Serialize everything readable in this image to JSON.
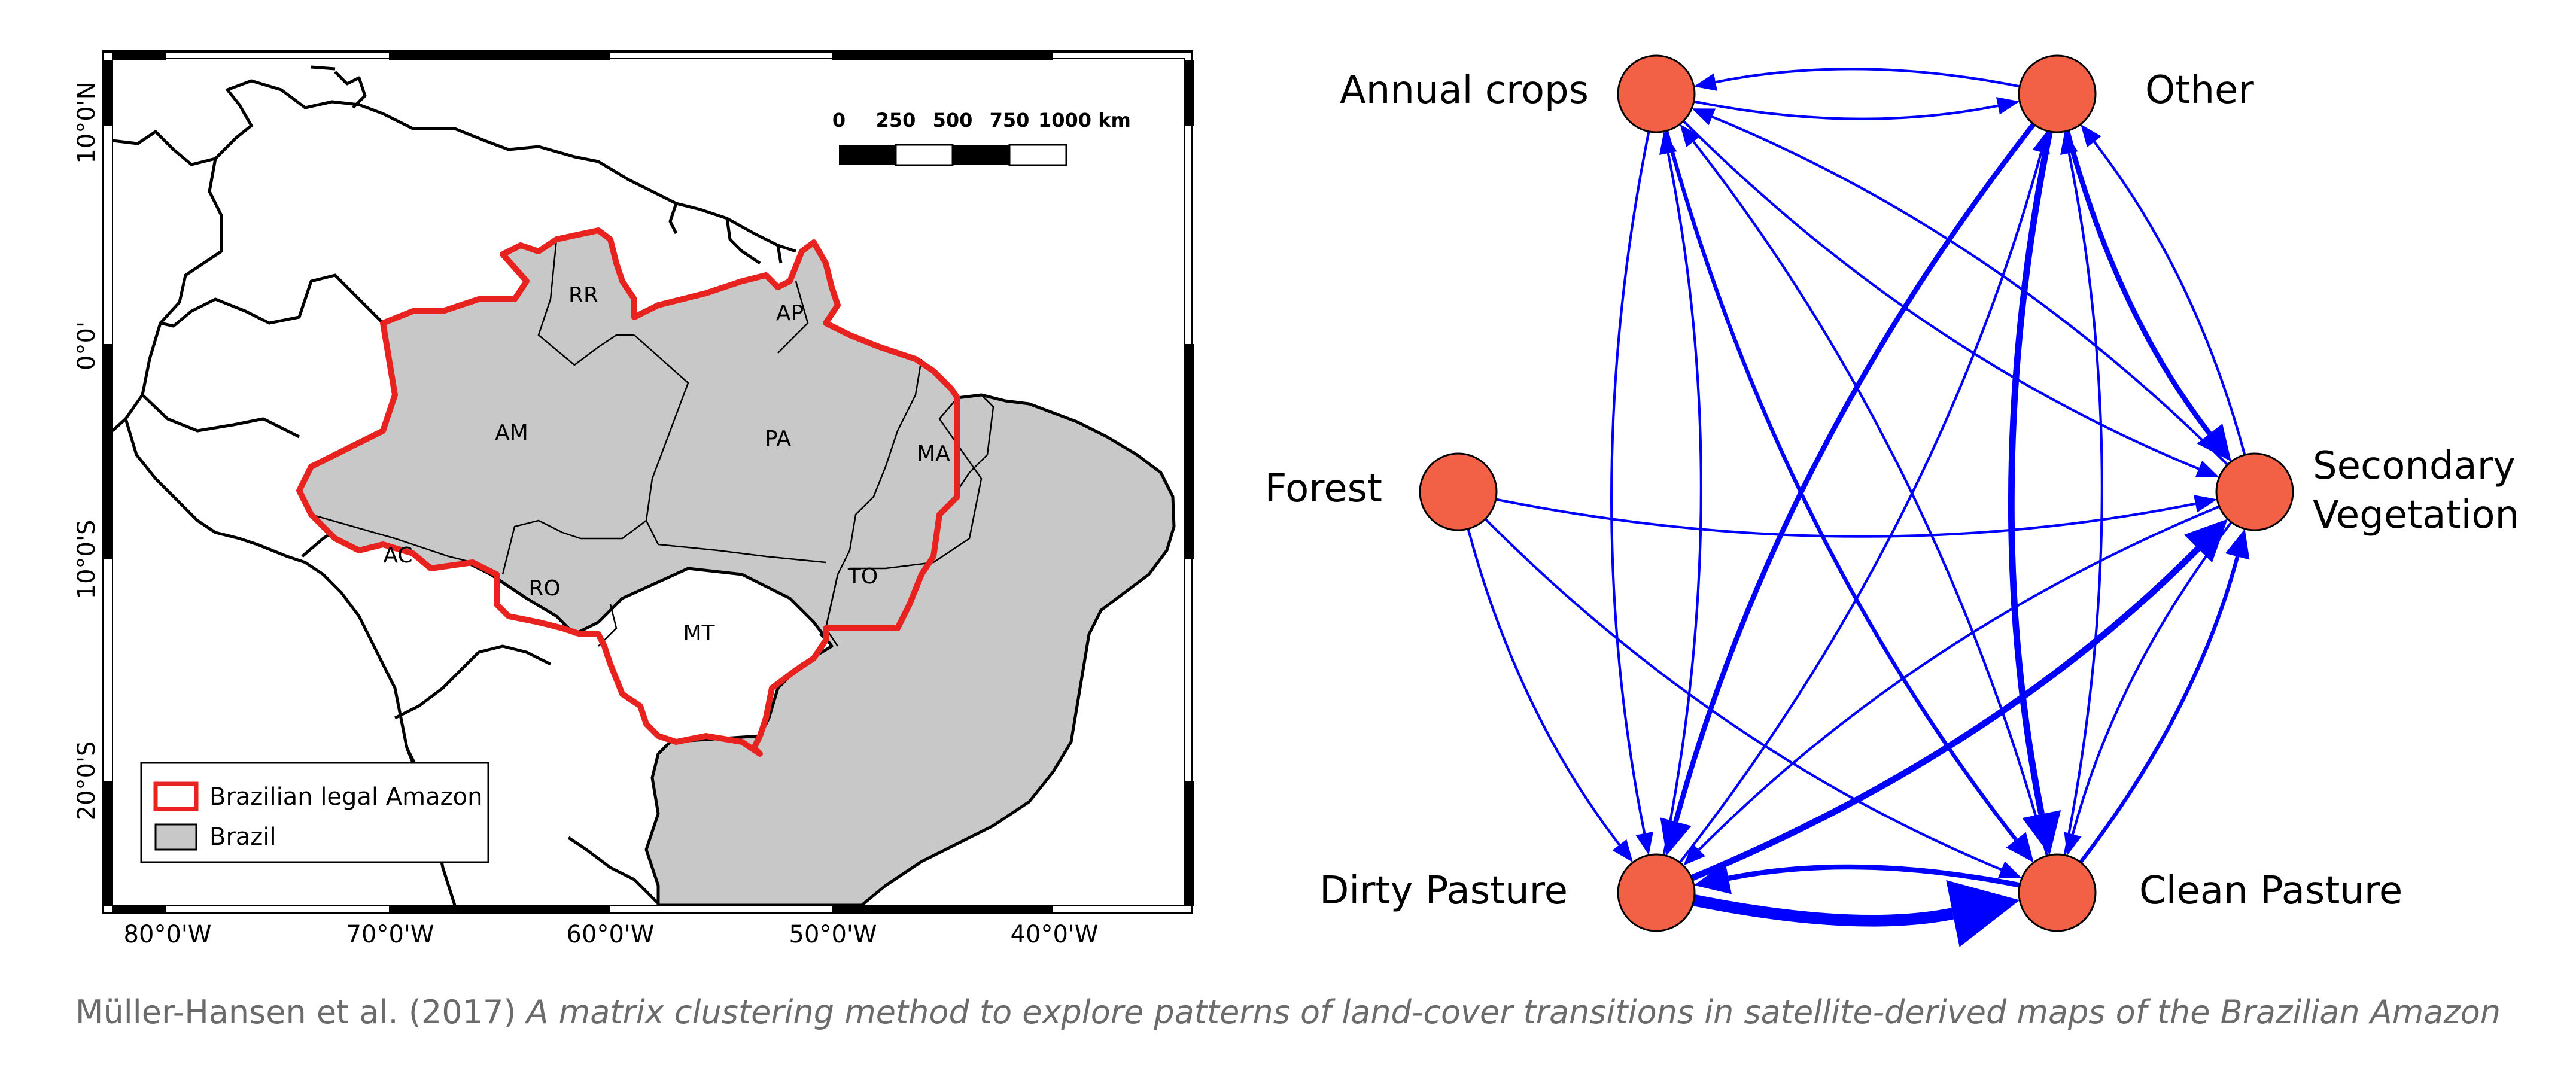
{
  "map": {
    "lat_labels": [
      "10°0'N",
      "0°0'",
      "10°0'S",
      "20°0'S"
    ],
    "lon_labels": [
      "80°0'W",
      "70°0'W",
      "60°0'W",
      "50°0'W",
      "40°0'W"
    ],
    "scalebar": {
      "ticks": [
        "0",
        "250",
        "500",
        "750",
        "1000 km"
      ]
    },
    "states": [
      "RR",
      "AP",
      "AM",
      "PA",
      "MA",
      "AC",
      "RO",
      "TO",
      "MT"
    ],
    "legend": [
      {
        "label": "Brazilian legal Amazon",
        "swatch": "red-outline"
      },
      {
        "label": "Brazil",
        "swatch": "grey-fill"
      }
    ],
    "colors": {
      "amazon_border": "#e8231f",
      "brazil_fill": "#c8c8c8"
    }
  },
  "network": {
    "nodes": [
      {
        "id": "annual",
        "label": [
          "Annual crops"
        ]
      },
      {
        "id": "other",
        "label": [
          "Other"
        ]
      },
      {
        "id": "forest",
        "label": [
          "Forest"
        ]
      },
      {
        "id": "secondary",
        "label": [
          "Secondary",
          "Vegetation"
        ]
      },
      {
        "id": "dirty",
        "label": [
          "Dirty Pasture"
        ]
      },
      {
        "id": "clean",
        "label": [
          "Clean Pasture"
        ]
      }
    ],
    "colors": {
      "node": "#f26046",
      "edge": "#0000ff"
    },
    "edges": [
      {
        "from": "annual",
        "to": "other",
        "w": 1
      },
      {
        "from": "other",
        "to": "annual",
        "w": 1
      },
      {
        "from": "annual",
        "to": "secondary",
        "w": 1
      },
      {
        "from": "annual",
        "to": "dirty",
        "w": 1
      },
      {
        "from": "dirty",
        "to": "annual",
        "w": 1
      },
      {
        "from": "annual",
        "to": "clean",
        "w": 2
      },
      {
        "from": "clean",
        "to": "annual",
        "w": 1
      },
      {
        "from": "secondary",
        "to": "annual",
        "w": 1
      },
      {
        "from": "other",
        "to": "secondary",
        "w": 3
      },
      {
        "from": "secondary",
        "to": "other",
        "w": 1
      },
      {
        "from": "other",
        "to": "dirty",
        "w": 3
      },
      {
        "from": "dirty",
        "to": "other",
        "w": 1
      },
      {
        "from": "other",
        "to": "clean",
        "w": 4
      },
      {
        "from": "clean",
        "to": "other",
        "w": 1
      },
      {
        "from": "forest",
        "to": "secondary",
        "w": 1
      },
      {
        "from": "forest",
        "to": "dirty",
        "w": 1
      },
      {
        "from": "forest",
        "to": "clean",
        "w": 1
      },
      {
        "from": "dirty",
        "to": "secondary",
        "w": 4
      },
      {
        "from": "secondary",
        "to": "dirty",
        "w": 1
      },
      {
        "from": "clean",
        "to": "secondary",
        "w": 2
      },
      {
        "from": "secondary",
        "to": "clean",
        "w": 1
      },
      {
        "from": "dirty",
        "to": "clean",
        "w": 8
      },
      {
        "from": "clean",
        "to": "dirty",
        "w": 3
      }
    ]
  },
  "caption": {
    "citation": "Müller-Hansen et al. (2017) ",
    "title": "A matrix clustering method to explore patterns of land-cover transitions in satellite-derived maps of the Brazilian Amazon"
  }
}
